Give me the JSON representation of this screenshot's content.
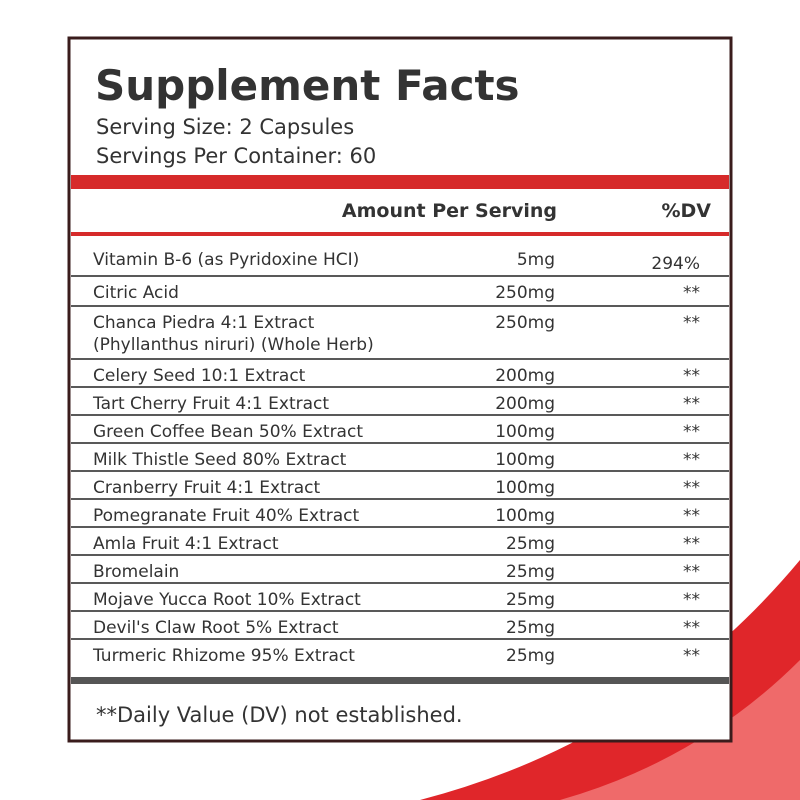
{
  "header": {
    "title": "Supplement Facts",
    "serving_size": "Serving Size: 2 Capsules",
    "servings_per_container": "Servings Per Container: 60"
  },
  "table": {
    "columns": [
      "Amount Per Serving",
      "%DV"
    ],
    "rows": [
      {
        "lines": [
          "Vitamin B-6 (as Pyridoxine HCI)"
        ],
        "amount": "5mg",
        "dv": "294%"
      },
      {
        "lines": [
          "Citric Acid"
        ],
        "amount": "250mg",
        "dv": "**"
      },
      {
        "lines": [
          "Chanca Piedra 4:1 Extract",
          "(Phyllanthus niruri) (Whole Herb)"
        ],
        "amount": "250mg",
        "dv": "**"
      },
      {
        "lines": [
          "Celery Seed 10:1 Extract"
        ],
        "amount": "200mg",
        "dv": "**"
      },
      {
        "lines": [
          "Tart Cherry Fruit 4:1 Extract"
        ],
        "amount": "200mg",
        "dv": "**"
      },
      {
        "lines": [
          "Green Coffee Bean 50% Extract"
        ],
        "amount": "100mg",
        "dv": "**"
      },
      {
        "lines": [
          "Milk Thistle Seed 80% Extract"
        ],
        "amount": "100mg",
        "dv": "**"
      },
      {
        "lines": [
          "Cranberry Fruit 4:1 Extract"
        ],
        "amount": "100mg",
        "dv": "**"
      },
      {
        "lines": [
          "Pomegranate Fruit 40% Extract"
        ],
        "amount": "100mg",
        "dv": "**"
      },
      {
        "lines": [
          "Amla Fruit 4:1 Extract"
        ],
        "amount": "25mg",
        "dv": "**"
      },
      {
        "lines": [
          "Bromelain"
        ],
        "amount": "25mg",
        "dv": "**"
      },
      {
        "lines": [
          "Mojave Yucca Root 10% Extract"
        ],
        "amount": "25mg",
        "dv": "**"
      },
      {
        "lines": [
          "Devil's Claw Root 5% Extract"
        ],
        "amount": "25mg",
        "dv": "**"
      },
      {
        "lines": [
          "Turmeric Rhizome 95% Extract"
        ],
        "amount": "25mg",
        "dv": "**"
      }
    ]
  },
  "footnote": "**Daily Value (DV) not established."
}
